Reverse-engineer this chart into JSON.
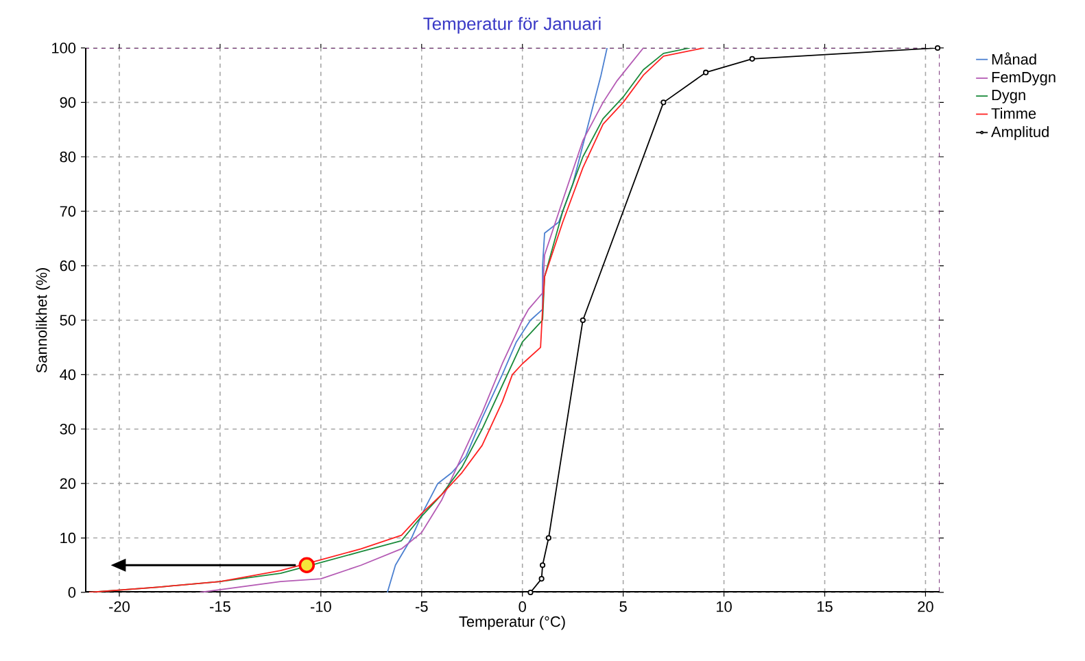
{
  "chart_data": {
    "type": "line",
    "title": "Temperatur för Januari",
    "xlabel": "Temperatur (°C)",
    "ylabel": "Sannolikhet (%)",
    "xlim": [
      -21.7,
      20.7
    ],
    "ylim": [
      0,
      100
    ],
    "xticks": [
      -20,
      -15,
      -10,
      -5,
      0,
      5,
      10,
      15,
      20
    ],
    "yticks": [
      0,
      10,
      20,
      30,
      40,
      50,
      60,
      70,
      80,
      90,
      100
    ],
    "grid": true,
    "legend": "top right",
    "line_style": "solid",
    "series": [
      {
        "name": "Månad",
        "color": "#4a7fd0",
        "marker": "none",
        "x": [
          -6.7,
          -6.3,
          -5.5,
          -4.9,
          -4.2,
          -3.5,
          -2.8,
          -2,
          -1,
          -0.3,
          0.4,
          1,
          1.0,
          1.1,
          1.8,
          2.5,
          3.2,
          3.9,
          4.2
        ],
        "values": [
          0,
          5,
          10,
          15,
          20,
          22,
          25,
          32,
          40,
          46,
          50,
          52,
          60,
          66,
          68,
          75,
          85,
          95,
          100
        ]
      },
      {
        "name": "FemDygn",
        "color": "#b45ab4",
        "marker": "none",
        "x": [
          -16,
          -12,
          -10,
          -8,
          -6,
          -5,
          -4,
          -3,
          -2,
          -1,
          0,
          0.3,
          1,
          1.1,
          2,
          3,
          4,
          4.7,
          6
        ],
        "values": [
          0,
          2,
          2.5,
          5,
          8,
          11,
          17,
          25,
          33,
          42,
          50,
          52,
          55,
          62,
          72,
          83,
          90,
          94,
          100
        ]
      },
      {
        "name": "Dygn",
        "color": "#1a8a3a",
        "marker": "none",
        "x": [
          -21.5,
          -18,
          -15,
          -12,
          -10.5,
          -8,
          -6,
          -5,
          -4,
          -3,
          -2,
          -1,
          0,
          1,
          1.1,
          2,
          3,
          4,
          5,
          6,
          7,
          8.3
        ],
        "values": [
          0,
          1,
          2,
          3.5,
          5,
          7.5,
          9.5,
          14,
          18,
          23,
          30,
          38,
          46,
          50,
          58,
          70,
          80,
          87,
          91,
          96,
          99,
          100
        ]
      },
      {
        "name": "Timme",
        "color": "#ff2020",
        "marker": "none",
        "x": [
          -21.5,
          -18,
          -15,
          -12,
          -10,
          -8,
          -6,
          -5,
          -4,
          -3,
          -2,
          -1,
          -0.5,
          0,
          0.9,
          1.0,
          1.1,
          2,
          3,
          4,
          5,
          6,
          7,
          9
        ],
        "values": [
          0,
          1,
          2,
          4,
          6,
          8,
          10.5,
          14.5,
          18,
          22,
          27,
          35,
          40,
          42,
          45,
          52,
          58,
          68,
          78,
          86,
          90,
          95,
          98.5,
          100
        ]
      },
      {
        "name": "Amplitud",
        "color": "#000000",
        "marker": "circle",
        "x": [
          0.4,
          0.95,
          1.0,
          1.3,
          3.0,
          7.0,
          9.1,
          11.4,
          20.6
        ],
        "values": [
          0,
          2.5,
          5,
          10,
          50,
          90,
          95.5,
          98,
          100
        ]
      },
      {
        "type": "scatter",
        "color": "#f5e63a",
        "marker": "circle",
        "x": [
          -10.7
        ],
        "values": [
          5
        ]
      }
    ]
  }
}
